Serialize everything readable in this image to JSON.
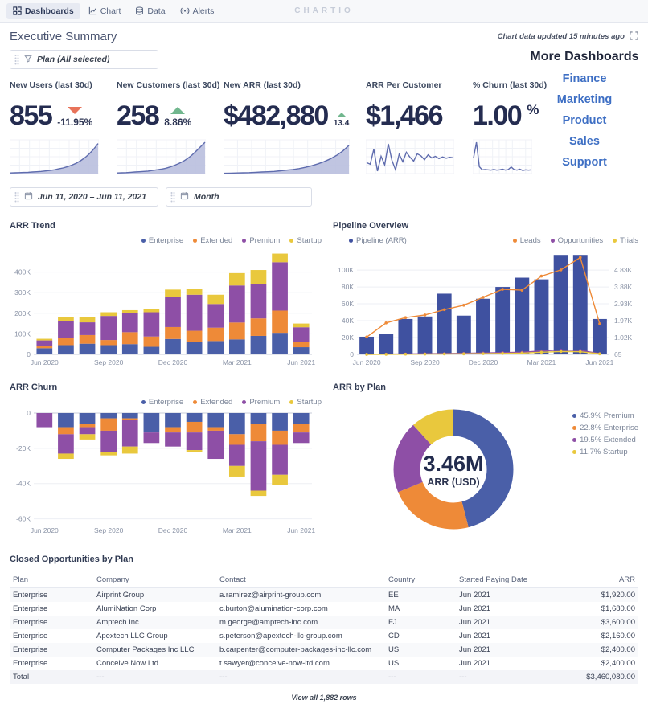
{
  "nav": {
    "brand": "CHARTIO",
    "tabs": [
      {
        "label": "Dashboards",
        "icon": "grid-icon",
        "active": true
      },
      {
        "label": "Chart",
        "icon": "chart-icon",
        "active": false
      },
      {
        "label": "Data",
        "icon": "data-icon",
        "active": false
      },
      {
        "label": "Alerts",
        "icon": "alerts-icon",
        "active": false
      }
    ]
  },
  "header": {
    "title": "Executive Summary",
    "updated": "Chart data updated 15 minutes ago"
  },
  "filters": {
    "plan_label": "Plan (All selected)",
    "date_range": "Jun 11, 2020  –  Jun 11, 2021",
    "interval": "Month"
  },
  "more_dashboards": {
    "title": "More Dashboards",
    "links": [
      "Finance",
      "Marketing",
      "Product",
      "Sales",
      "Support"
    ]
  },
  "kpis": [
    {
      "label": "New Users (last 30d)",
      "value": "855",
      "suffix": "",
      "delta": "-11.95%",
      "trend": "down",
      "spark": "spark-new-users"
    },
    {
      "label": "New Customers (last 30d)",
      "value": "258",
      "suffix": "",
      "delta": "8.86%",
      "trend": "up",
      "spark": "spark-new-customers"
    },
    {
      "label": "New ARR (last 30d)",
      "value": "$482,880",
      "suffix": "",
      "delta": "13.4",
      "trend": "up",
      "small_delta": true,
      "spark": "spark-new-arr"
    },
    {
      "label": "ARR Per Customer",
      "value": "$1,466",
      "suffix": "",
      "delta": "",
      "trend": "none",
      "spark": "spark-arr-per-customer"
    },
    {
      "label": "% Churn (last 30d)",
      "value": "1.00",
      "suffix": "%",
      "delta": "",
      "trend": "none",
      "spark": "spark-churn"
    }
  ],
  "colors": {
    "enterprise": "#4a5fa8",
    "extended": "#ee8a38",
    "premium": "#8e4fa6",
    "startup": "#e9c83d",
    "pipeline_bar": "#3f51a0",
    "link_blue": "#3e6fc4",
    "delta_red": "#e8735a",
    "delta_green": "#71b78e",
    "spark_fill": "#b9bfde",
    "spark_stroke": "#5f6cae"
  },
  "chart_data": [
    {
      "id": "spark-new-users",
      "type": "area",
      "values": [
        2,
        2.5,
        3,
        3.5,
        4,
        5,
        6,
        7,
        8.5,
        10,
        12,
        15,
        18,
        22,
        27,
        33,
        41,
        51,
        63,
        78,
        96
      ]
    },
    {
      "id": "spark-new-customers",
      "type": "area",
      "values": [
        2,
        2.5,
        3,
        4,
        5,
        6,
        7,
        8,
        10,
        12,
        14,
        17,
        21,
        26,
        32,
        39,
        48,
        59,
        72,
        86,
        100
      ]
    },
    {
      "id": "spark-new-arr",
      "type": "area",
      "values": [
        1,
        1.5,
        2,
        2.5,
        3,
        4,
        5,
        6,
        7,
        9,
        11,
        13,
        16,
        20,
        25,
        31,
        38,
        47,
        58,
        72,
        90
      ]
    },
    {
      "id": "spark-arr-per-customer",
      "type": "line",
      "values": [
        35,
        30,
        78,
        8,
        55,
        28,
        95,
        42,
        12,
        62,
        38,
        68,
        52,
        40,
        63,
        57,
        44,
        60,
        50,
        55,
        48,
        53,
        49,
        52,
        50
      ]
    },
    {
      "id": "spark-churn",
      "type": "line",
      "values": [
        50,
        100,
        22,
        12,
        13,
        12,
        11,
        13,
        11,
        12,
        14,
        11,
        13,
        21,
        13,
        11,
        14,
        10,
        12,
        11,
        12
      ]
    },
    {
      "id": "arr-trend",
      "type": "stacked-bar",
      "title": "ARR Trend",
      "categories": [
        "Jun 2020",
        "Jul 2020",
        "Aug 2020",
        "Sep 2020",
        "Oct 2020",
        "Nov 2020",
        "Dec 2020",
        "Jan 2021",
        "Feb 2021",
        "Mar 2021",
        "Apr 2021",
        "May 2021",
        "Jun 2021"
      ],
      "series": [
        {
          "name": "Enterprise",
          "color": "#4a5fa8",
          "values": [
            30000,
            45000,
            52000,
            45000,
            50000,
            37000,
            75000,
            60000,
            65000,
            73000,
            90000,
            105000,
            35000
          ]
        },
        {
          "name": "Extended",
          "color": "#ee8a38",
          "values": [
            10000,
            35000,
            42000,
            25000,
            58000,
            50000,
            58000,
            55000,
            65000,
            82000,
            85000,
            108000,
            25000
          ]
        },
        {
          "name": "Premium",
          "color": "#8e4fa6",
          "values": [
            28000,
            82000,
            62000,
            117000,
            92000,
            118000,
            145000,
            175000,
            115000,
            180000,
            168000,
            235000,
            72000
          ]
        },
        {
          "name": "Startup",
          "color": "#e9c83d",
          "values": [
            8000,
            18000,
            26000,
            18000,
            15000,
            15000,
            37000,
            28000,
            45000,
            60000,
            67000,
            42000,
            18000
          ]
        }
      ],
      "y_min": 0,
      "y_max": 500000,
      "y_ticks": [
        {
          "v": 0,
          "label": "0"
        },
        {
          "v": 100000,
          "label": "100K"
        },
        {
          "v": 200000,
          "label": "200K"
        },
        {
          "v": 300000,
          "label": "300K"
        },
        {
          "v": 400000,
          "label": "400K"
        }
      ],
      "x_ticks": [
        {
          "i": 0,
          "label": "Jun 2020"
        },
        {
          "i": 3,
          "label": "Sep 2020"
        },
        {
          "i": 6,
          "label": "Dec 2020"
        },
        {
          "i": 9,
          "label": "Mar 2021"
        },
        {
          "i": 12,
          "label": "Jun 2021"
        }
      ]
    },
    {
      "id": "pipeline",
      "type": "bar-line",
      "title": "Pipeline Overview",
      "categories": [
        "Jun 2020",
        "Jul 2020",
        "Aug 2020",
        "Sep 2020",
        "Oct 2020",
        "Nov 2020",
        "Dec 2020",
        "Jan 2021",
        "Feb 2021",
        "Mar 2021",
        "Apr 2021",
        "May 2021",
        "Jun 2021"
      ],
      "bars": {
        "name": "Pipeline (ARR)",
        "color": "#3f51a0",
        "values": [
          21000,
          24000,
          42000,
          45000,
          72000,
          46000,
          66000,
          80000,
          91000,
          89000,
          118000,
          118000,
          42000
        ]
      },
      "lines": [
        {
          "name": "Leads",
          "color": "#ee8a38",
          "values": [
            1050,
            1850,
            2150,
            2300,
            2600,
            2850,
            3300,
            3750,
            3700,
            4500,
            4850,
            5550,
            1800
          ]
        },
        {
          "name": "Opportunities",
          "color": "#8e4fa6",
          "values": [
            70,
            80,
            90,
            100,
            110,
            125,
            145,
            165,
            190,
            260,
            310,
            290,
            110
          ]
        },
        {
          "name": "Trials",
          "color": "#e9c83d",
          "values": [
            66,
            70,
            76,
            82,
            88,
            95,
            105,
            118,
            140,
            190,
            230,
            215,
            95
          ]
        }
      ],
      "right_axis": {
        "offset": 65,
        "scale": 20.942
      },
      "y_min": 0,
      "y_max": 122000,
      "y_ticks": [
        {
          "v": 0,
          "label": "0",
          "right": "65"
        },
        {
          "v": 20000,
          "label": "20K",
          "right": "1.02K"
        },
        {
          "v": 40000,
          "label": "40K",
          "right": "1.97K"
        },
        {
          "v": 60000,
          "label": "60K",
          "right": "2.93K"
        },
        {
          "v": 80000,
          "label": "80K",
          "right": "3.88K"
        },
        {
          "v": 100000,
          "label": "100K",
          "right": "4.83K"
        }
      ],
      "x_ticks": [
        {
          "i": 0,
          "label": "Jun 2020"
        },
        {
          "i": 3,
          "label": "Sep 2020"
        },
        {
          "i": 6,
          "label": "Dec 2020"
        },
        {
          "i": 9,
          "label": "Mar 2021"
        },
        {
          "i": 12,
          "label": "Jun 2021"
        }
      ]
    },
    {
      "id": "arr-churn",
      "type": "stacked-bar",
      "title": "ARR Churn",
      "categories": [
        "Jun 2020",
        "Jul 2020",
        "Aug 2020",
        "Sep 2020",
        "Oct 2020",
        "Nov 2020",
        "Dec 2020",
        "Jan 2021",
        "Feb 2021",
        "Mar 2021",
        "Apr 2021",
        "May 2021",
        "Jun 2021"
      ],
      "series": [
        {
          "name": "Enterprise",
          "color": "#4a5fa8",
          "values": [
            0,
            -8000,
            -6000,
            -3000,
            -3000,
            -11000,
            -8000,
            -5000,
            -8000,
            -12000,
            -6000,
            -10000,
            -6000
          ]
        },
        {
          "name": "Extended",
          "color": "#ee8a38",
          "values": [
            0,
            -4000,
            -2000,
            -7000,
            -1000,
            0,
            -3000,
            -6000,
            -2000,
            -6000,
            -10000,
            -8000,
            -5000
          ]
        },
        {
          "name": "Premium",
          "color": "#8e4fa6",
          "values": [
            -8000,
            -11000,
            -4000,
            -12000,
            -15000,
            -6000,
            -8000,
            -10000,
            -16000,
            -12000,
            -28000,
            -17000,
            -6000
          ]
        },
        {
          "name": "Startup",
          "color": "#e9c83d",
          "values": [
            0,
            -3000,
            -3000,
            -2000,
            -4000,
            0,
            0,
            -1000,
            0,
            -6000,
            -3000,
            -6000,
            0
          ]
        }
      ],
      "y_min": -62000,
      "y_max": 0,
      "y_ticks": [
        {
          "v": 0,
          "label": "0"
        },
        {
          "v": -20000,
          "label": "-20K"
        },
        {
          "v": -40000,
          "label": "-40K"
        },
        {
          "v": -60000,
          "label": "-60K"
        }
      ],
      "x_ticks": [
        {
          "i": 0,
          "label": "Jun 2020"
        },
        {
          "i": 3,
          "label": "Sep 2020"
        },
        {
          "i": 6,
          "label": "Dec 2020"
        },
        {
          "i": 9,
          "label": "Mar 2021"
        },
        {
          "i": 12,
          "label": "Jun 2021"
        }
      ]
    },
    {
      "id": "arr-by-plan",
      "type": "donut",
      "title": "ARR by Plan",
      "center_value": "3.46M",
      "center_label": "ARR (USD)",
      "slices": [
        {
          "label": "45.9% Premium",
          "pct": 45.9,
          "color": "#4a5fa8"
        },
        {
          "label": "22.8% Enterprise",
          "pct": 22.8,
          "color": "#ee8a38"
        },
        {
          "label": "19.5% Extended",
          "pct": 19.5,
          "color": "#8e4fa6"
        },
        {
          "label": "11.7% Startup",
          "pct": 11.7,
          "color": "#e9c83d"
        }
      ]
    }
  ],
  "table": {
    "title": "Closed Opportunities by Plan",
    "columns": [
      "Plan",
      "Company",
      "Contact",
      "Country",
      "Started Paying Date",
      "ARR"
    ],
    "rows": [
      [
        "Enterprise",
        "Airprint Group",
        "a.ramirez@airprint-group.com",
        "EE",
        "Jun 2021",
        "$1,920.00"
      ],
      [
        "Enterprise",
        "AlumiNation Corp",
        "c.burton@alumination-corp.com",
        "MA",
        "Jun 2021",
        "$1,680.00"
      ],
      [
        "Enterprise",
        "Amptech Inc",
        "m.george@amptech-inc.com",
        "FJ",
        "Jun 2021",
        "$3,600.00"
      ],
      [
        "Enterprise",
        "Apextech LLC Group",
        "s.peterson@apextech-llc-group.com",
        "CD",
        "Jun 2021",
        "$2,160.00"
      ],
      [
        "Enterprise",
        "Computer Packages Inc LLC",
        "b.carpenter@computer-packages-inc-llc.com",
        "US",
        "Jun 2021",
        "$2,400.00"
      ],
      [
        "Enterprise",
        "Conceive Now Ltd",
        "t.sawyer@conceive-now-ltd.com",
        "US",
        "Jun 2021",
        "$2,400.00"
      ]
    ],
    "total_row": [
      "Total",
      "---",
      "---",
      "---",
      "---",
      "$3,460,080.00"
    ],
    "footer_link": "View all 1,882 rows"
  }
}
